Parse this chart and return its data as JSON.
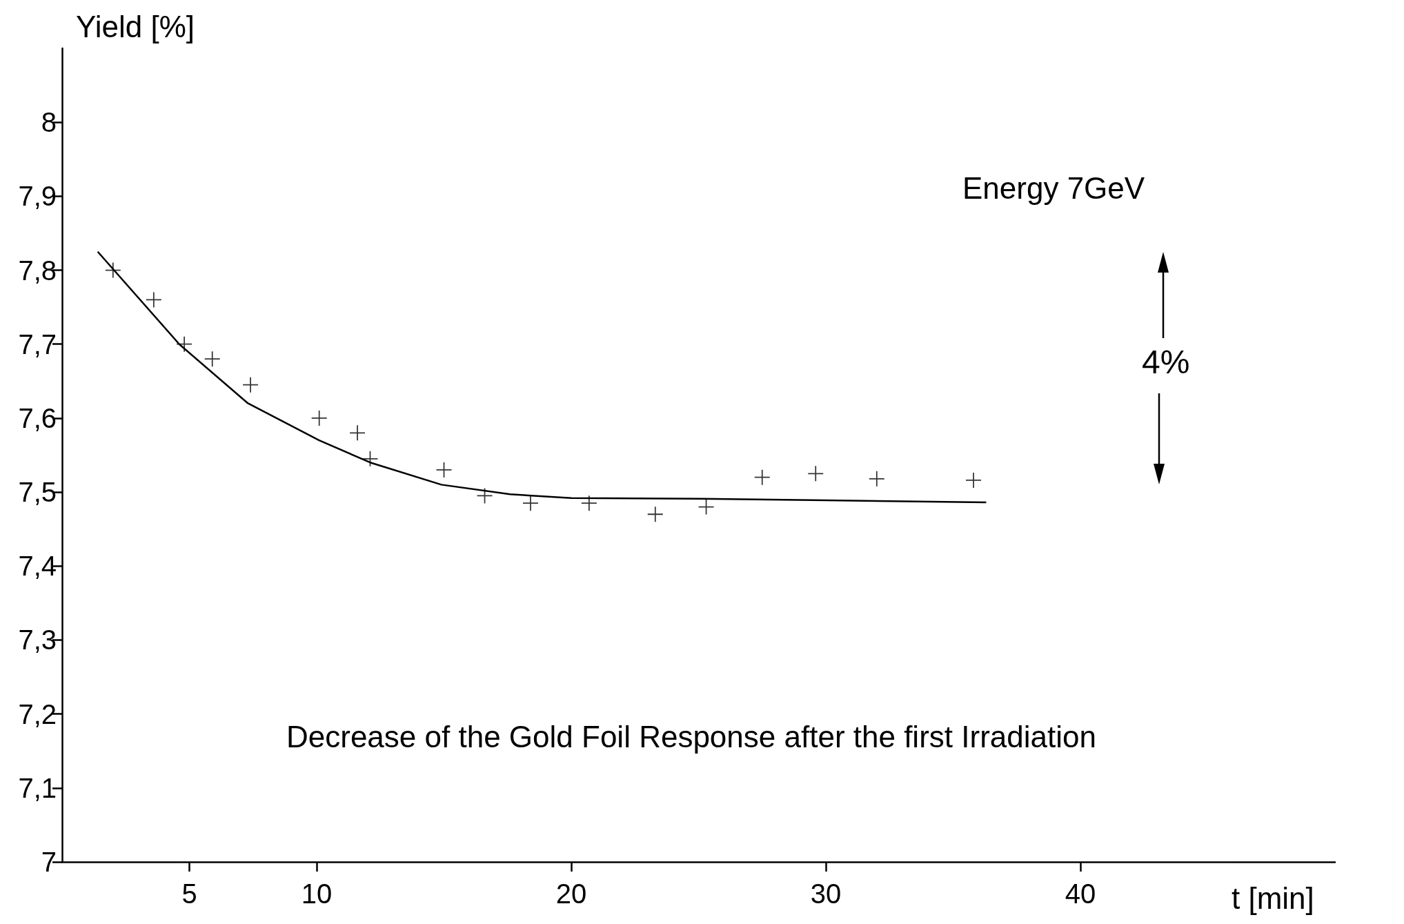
{
  "chart_data": {
    "type": "scatter",
    "title": "Decrease of the Gold Foil Response after the first Irradiation",
    "xlabel": "t [min]",
    "ylabel": "Yield [%]",
    "annotations": [
      "Energy 7GeV",
      "4%"
    ],
    "xlim": [
      0,
      50
    ],
    "xticks": [
      5,
      10,
      20,
      30,
      40
    ],
    "ylim": [
      7,
      8.1
    ],
    "yticks": [
      {
        "value": 7,
        "label": "7"
      },
      {
        "value": 7.1,
        "label": "7,1"
      },
      {
        "value": 7.2,
        "label": "7,2"
      },
      {
        "value": 7.3,
        "label": "7,3"
      },
      {
        "value": 7.4,
        "label": "7,4"
      },
      {
        "value": 7.5,
        "label": "7,5"
      },
      {
        "value": 7.6,
        "label": "7,6"
      },
      {
        "value": 7.7,
        "label": "7,7"
      },
      {
        "value": 7.8,
        "label": "7,8"
      },
      {
        "value": 7.9,
        "label": "7,9"
      },
      {
        "value": 8,
        "label": "8"
      }
    ],
    "grid": false,
    "marker": "cross",
    "series": [
      {
        "color": "#000000",
        "x": [
          2.0,
          3.6,
          4.8,
          5.9,
          7.4,
          10.1,
          11.6,
          12.1,
          15.0,
          16.6,
          18.4,
          20.7,
          23.3,
          25.3,
          27.5,
          29.6,
          32.0,
          35.8
        ],
        "values": [
          7.8,
          7.76,
          7.7,
          7.68,
          7.645,
          7.6,
          7.58,
          7.545,
          7.53,
          7.495,
          7.485,
          7.485,
          7.47,
          7.48,
          7.52,
          7.525,
          7.518,
          7.516
        ]
      },
      {
        "type": "line",
        "color": "#000000",
        "marker": "none",
        "x": [
          1.4,
          4.6,
          7.3,
          10.1,
          12.1,
          14.9,
          17.6,
          20,
          25.1,
          30,
          36.3
        ],
        "values": [
          7.825,
          7.7,
          7.62,
          7.57,
          7.54,
          7.51,
          7.497,
          7.492,
          7.491,
          7.489,
          7.486
        ]
      }
    ]
  }
}
